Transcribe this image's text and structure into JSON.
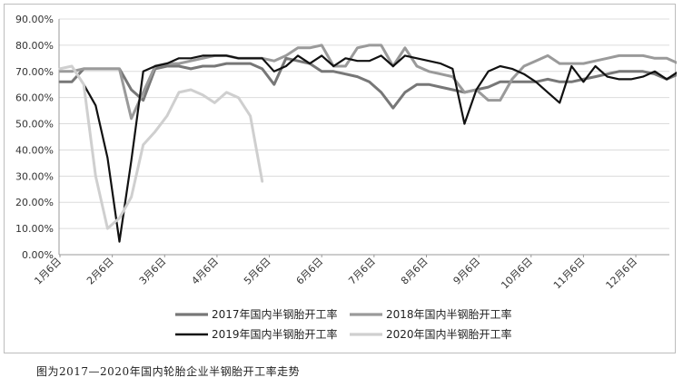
{
  "caption": "图为2017—2020年国内轮胎企业半钢胎开工率走势",
  "chart_data": {
    "type": "line",
    "title": "",
    "xlabel": "",
    "ylabel": "",
    "ylim": [
      0,
      90
    ],
    "y_ticks": [
      "0.00%",
      "10.00%",
      "20.00%",
      "30.00%",
      "40.00%",
      "50.00%",
      "60.00%",
      "70.00%",
      "80.00%",
      "90.00%"
    ],
    "x_ticks": [
      "1月6日",
      "2月6日",
      "3月6日",
      "4月6日",
      "5月6日",
      "6月6日",
      "7月6日",
      "8月6日",
      "9月6日",
      "10月6日",
      "11月6日",
      "12月6日"
    ],
    "x_unit": "week",
    "grid": "horizontal",
    "legend_position": "bottom",
    "series": [
      {
        "name": "2017年国内半钢胎开工率",
        "color": "#777777",
        "points": [
          [
            0,
            66
          ],
          [
            1,
            66
          ],
          [
            2,
            71
          ],
          [
            3,
            71
          ],
          [
            4,
            71
          ],
          [
            5,
            71
          ],
          [
            6,
            63
          ],
          [
            7,
            59
          ],
          [
            8,
            71
          ],
          [
            9,
            72
          ],
          [
            10,
            72
          ],
          [
            11,
            71
          ],
          [
            12,
            72
          ],
          [
            13,
            72
          ],
          [
            14,
            73
          ],
          [
            15,
            73
          ],
          [
            16,
            73
          ],
          [
            17,
            71
          ],
          [
            18,
            65
          ],
          [
            19,
            75
          ],
          [
            20,
            74
          ],
          [
            21,
            73
          ],
          [
            22,
            70
          ],
          [
            23,
            70
          ],
          [
            24,
            69
          ],
          [
            25,
            68
          ],
          [
            26,
            66
          ],
          [
            27,
            62
          ],
          [
            28,
            56
          ],
          [
            29,
            62
          ],
          [
            30,
            65
          ],
          [
            31,
            65
          ],
          [
            32,
            64
          ],
          [
            33,
            63
          ],
          [
            34,
            62
          ],
          [
            35,
            63
          ],
          [
            36,
            64
          ],
          [
            37,
            66
          ],
          [
            38,
            66
          ],
          [
            39,
            66
          ],
          [
            40,
            66
          ],
          [
            41,
            67
          ],
          [
            42,
            66
          ],
          [
            43,
            66
          ],
          [
            44,
            67
          ],
          [
            45,
            68
          ],
          [
            46,
            69
          ],
          [
            47,
            70
          ],
          [
            48,
            70
          ],
          [
            49,
            70
          ],
          [
            50,
            69
          ],
          [
            51,
            67
          ],
          [
            52,
            69
          ],
          [
            53,
            70
          ]
        ]
      },
      {
        "name": "2018年国内半钢胎开工率",
        "color": "#9a9a9a",
        "points": [
          [
            0,
            70
          ],
          [
            1,
            70
          ],
          [
            2,
            71
          ],
          [
            3,
            71
          ],
          [
            4,
            71
          ],
          [
            5,
            71
          ],
          [
            6,
            52
          ],
          [
            7,
            62
          ],
          [
            8,
            72
          ],
          [
            9,
            73
          ],
          [
            10,
            73
          ],
          [
            11,
            74
          ],
          [
            12,
            75
          ],
          [
            13,
            76
          ],
          [
            14,
            76
          ],
          [
            15,
            75
          ],
          [
            16,
            75
          ],
          [
            17,
            75
          ],
          [
            18,
            74
          ],
          [
            19,
            76
          ],
          [
            20,
            79
          ],
          [
            21,
            79
          ],
          [
            22,
            80
          ],
          [
            23,
            72
          ],
          [
            24,
            72
          ],
          [
            25,
            79
          ],
          [
            26,
            80
          ],
          [
            27,
            80
          ],
          [
            28,
            72
          ],
          [
            29,
            79
          ],
          [
            30,
            72
          ],
          [
            31,
            70
          ],
          [
            32,
            69
          ],
          [
            33,
            68
          ],
          [
            34,
            62
          ],
          [
            35,
            63
          ],
          [
            36,
            59
          ],
          [
            37,
            59
          ],
          [
            38,
            67
          ],
          [
            39,
            72
          ],
          [
            40,
            74
          ],
          [
            41,
            76
          ],
          [
            42,
            73
          ],
          [
            43,
            73
          ],
          [
            44,
            73
          ],
          [
            45,
            74
          ],
          [
            46,
            75
          ],
          [
            47,
            76
          ],
          [
            48,
            76
          ],
          [
            49,
            76
          ],
          [
            50,
            75
          ],
          [
            51,
            75
          ],
          [
            52,
            73
          ],
          [
            53,
            73
          ],
          [
            54,
            72
          ],
          [
            55,
            72
          ]
        ]
      },
      {
        "name": "2019年国内半钢胎开工率",
        "color": "#111111",
        "points": [
          [
            0,
            71
          ],
          [
            1,
            72
          ],
          [
            2,
            65
          ],
          [
            3,
            57
          ],
          [
            4,
            37
          ],
          [
            5,
            5
          ],
          [
            6,
            36
          ],
          [
            7,
            70
          ],
          [
            8,
            72
          ],
          [
            9,
            73
          ],
          [
            10,
            75
          ],
          [
            11,
            75
          ],
          [
            12,
            76
          ],
          [
            13,
            76
          ],
          [
            14,
            76
          ],
          [
            15,
            75
          ],
          [
            16,
            75
          ],
          [
            17,
            75
          ],
          [
            18,
            70
          ],
          [
            19,
            72
          ],
          [
            20,
            76
          ],
          [
            21,
            73
          ],
          [
            22,
            76
          ],
          [
            23,
            72
          ],
          [
            24,
            75
          ],
          [
            25,
            74
          ],
          [
            26,
            74
          ],
          [
            27,
            76
          ],
          [
            28,
            72
          ],
          [
            29,
            76
          ],
          [
            30,
            75
          ],
          [
            31,
            74
          ],
          [
            32,
            73
          ],
          [
            33,
            71
          ],
          [
            34,
            50
          ],
          [
            35,
            63
          ],
          [
            36,
            70
          ],
          [
            37,
            72
          ],
          [
            38,
            71
          ],
          [
            39,
            69
          ],
          [
            40,
            66
          ],
          [
            41,
            62
          ],
          [
            42,
            58
          ],
          [
            43,
            72
          ],
          [
            44,
            66
          ],
          [
            45,
            72
          ],
          [
            46,
            68
          ],
          [
            47,
            67
          ],
          [
            48,
            67
          ],
          [
            49,
            68
          ],
          [
            50,
            70
          ],
          [
            51,
            67
          ],
          [
            52,
            70
          ],
          [
            53,
            63
          ]
        ]
      },
      {
        "name": "2020年国内半钢胎开工率",
        "color": "#cfcfcf",
        "points": [
          [
            0,
            71
          ],
          [
            1,
            72
          ],
          [
            2,
            65
          ],
          [
            3,
            30
          ],
          [
            4,
            10
          ],
          [
            5,
            14
          ],
          [
            6,
            22
          ],
          [
            7,
            42
          ],
          [
            8,
            47
          ],
          [
            9,
            53
          ],
          [
            10,
            62
          ],
          [
            11,
            63
          ],
          [
            12,
            61
          ],
          [
            13,
            58
          ],
          [
            14,
            62
          ],
          [
            15,
            60
          ],
          [
            16,
            53
          ],
          [
            17,
            28
          ]
        ]
      }
    ]
  }
}
